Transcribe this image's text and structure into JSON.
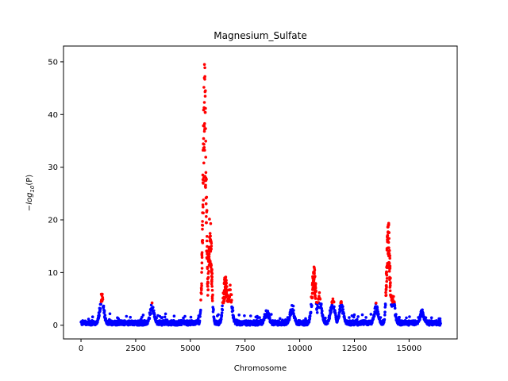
{
  "chart_data": {
    "type": "scatter",
    "title": "Magnesium_Sulfate",
    "xlabel": "Chromosome",
    "ylabel_prefix": "−log",
    "ylabel_sub": "10",
    "ylabel_suffix": "(P)",
    "xlim": [
      -800,
      17200
    ],
    "ylim": [
      -2.6,
      53.0
    ],
    "xticks": [
      0,
      2500,
      5000,
      7500,
      10000,
      12500,
      15000
    ],
    "xtick_labels": [
      "0",
      "2500",
      "5000",
      "7500",
      "10000",
      "12500",
      "15000"
    ],
    "yticks": [
      0,
      10,
      20,
      30,
      40,
      50
    ],
    "ytick_labels": [
      "0",
      "10",
      "20",
      "30",
      "40",
      "50"
    ],
    "grid": false,
    "colors": {
      "significant": "#ff0000",
      "non_significant": "#0000ff"
    },
    "significance_threshold": 4.2,
    "x_range": [
      0,
      16450
    ],
    "peaks": [
      {
        "x": 950,
        "y": 6.0
      },
      {
        "x": 3250,
        "y": 4.2
      },
      {
        "x": 5650,
        "y": 50.5
      },
      {
        "x": 5900,
        "y": 21.0
      },
      {
        "x": 6600,
        "y": 9.5
      },
      {
        "x": 6800,
        "y": 7.8
      },
      {
        "x": 8500,
        "y": 3.0
      },
      {
        "x": 9650,
        "y": 3.8
      },
      {
        "x": 10650,
        "y": 11.0
      },
      {
        "x": 10900,
        "y": 6.0
      },
      {
        "x": 11500,
        "y": 5.5
      },
      {
        "x": 11900,
        "y": 4.5
      },
      {
        "x": 13500,
        "y": 4.0
      },
      {
        "x": 14050,
        "y": 20.5
      },
      {
        "x": 14250,
        "y": 6.0
      },
      {
        "x": 15600,
        "y": 2.8
      }
    ]
  }
}
